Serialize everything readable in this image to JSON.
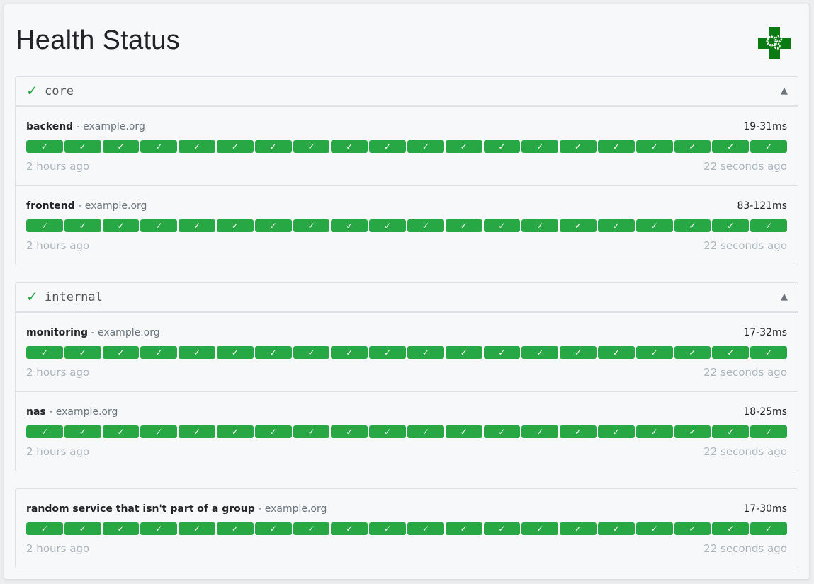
{
  "page": {
    "title": "Health Status",
    "logo_icon": "medical-cross-gears-logo",
    "accent": "#28a745"
  },
  "groups": [
    {
      "name": "core",
      "status_icon": "✓",
      "collapse_icon": "▲",
      "services": [
        {
          "name": "backend",
          "host": "example.org",
          "response_time": "19-31ms",
          "oldest": "2 hours ago",
          "newest": "22 seconds ago"
        },
        {
          "name": "frontend",
          "host": "example.org",
          "response_time": "83-121ms",
          "oldest": "2 hours ago",
          "newest": "22 seconds ago"
        }
      ]
    },
    {
      "name": "internal",
      "status_icon": "✓",
      "collapse_icon": "▲",
      "services": [
        {
          "name": "monitoring",
          "host": "example.org",
          "response_time": "17-32ms",
          "oldest": "2 hours ago",
          "newest": "22 seconds ago"
        },
        {
          "name": "nas",
          "host": "example.org",
          "response_time": "18-25ms",
          "oldest": "2 hours ago",
          "newest": "22 seconds ago"
        }
      ]
    }
  ],
  "ungrouped": [
    {
      "name": "random service that isn't part of a group",
      "host": "example.org",
      "response_time": "17-30ms",
      "oldest": "2 hours ago",
      "newest": "22 seconds ago"
    }
  ],
  "result_bar": {
    "count": 20,
    "status": "success",
    "icon": "✓",
    "color": "#28a745"
  }
}
